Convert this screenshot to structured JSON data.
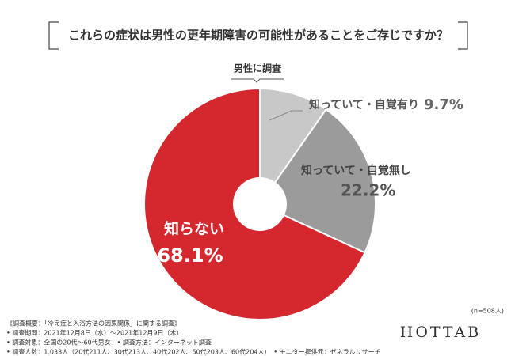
{
  "chart_data": {
    "type": "pie",
    "title": "これらの症状は男性の更年期障害の可能性があることをご存じですか？",
    "subtitle": "男性に調査",
    "categories": [
      "知っていて・自覚有り",
      "知っていて・自覚無し",
      "知らない"
    ],
    "values": [
      9.7,
      22.2,
      68.1
    ],
    "value_labels": [
      "9.7%",
      "22.2%",
      "68.1%"
    ],
    "colors": [
      "#c8c8c8",
      "#9b9b9b",
      "#d4282e"
    ],
    "note": "(n=508人)"
  },
  "footnotes": [
    "《調査概要：「冷え症と入浴方法の因果関係」に関する調査》",
    "• 調査期間：2021年12月8日（水）～2021年12月9日（木）",
    "• 調査対象：全国の20代～60代男女　• 調査方法：インターネット調査",
    "• 調査人数：1,033人（20代211人、30代213人、40代202人、50代203人、60代204人）　• モニター提供元：ゼネラルリサーチ"
  ],
  "brand": "HOTTAB"
}
